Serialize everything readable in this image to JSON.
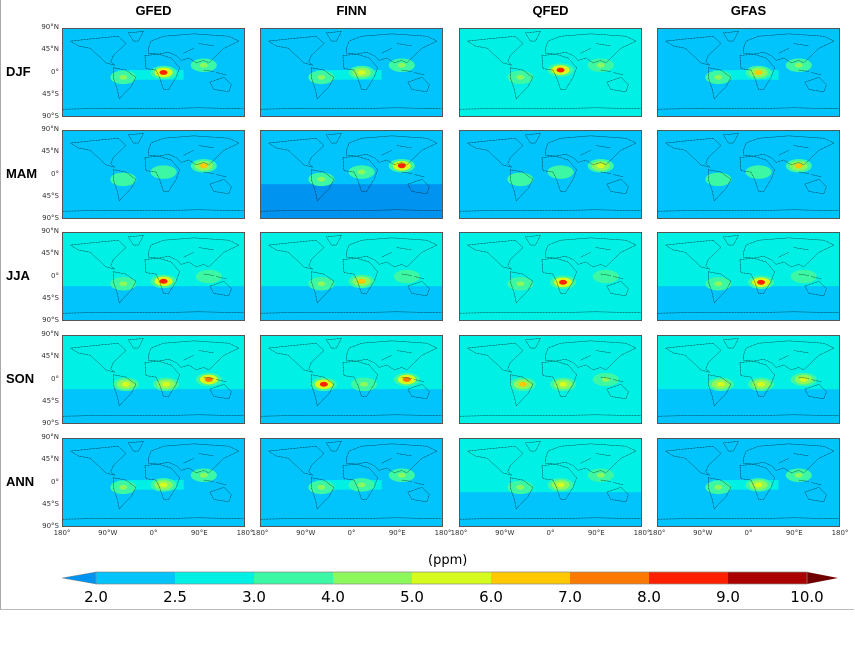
{
  "columns": [
    "GFED",
    "FINN",
    "QFED",
    "GFAS"
  ],
  "rows": [
    "DJF",
    "MAM",
    "JJA",
    "SON",
    "ANN"
  ],
  "lat_ticks": [
    "90°N",
    "45°N",
    "0°",
    "45°S",
    "90°S"
  ],
  "lon_ticks": [
    "180°",
    "90°W",
    "0°",
    "90°E",
    "180°"
  ],
  "colorbar": {
    "unit": "(ppm)",
    "levels": [
      "2.0",
      "2.5",
      "3.0",
      "4.0",
      "5.0",
      "6.0",
      "7.0",
      "8.0",
      "9.0",
      "10.0"
    ],
    "colors": [
      "#0094f0",
      "#00c4fb",
      "#00f0e6",
      "#3cf7a4",
      "#8cf85c",
      "#d6fb1e",
      "#ffc800",
      "#ff7800",
      "#ff2000",
      "#aa0000",
      "#700000"
    ],
    "extend": "both"
  },
  "panels": [
    [
      {
        "north": 2.2,
        "south": 2.2,
        "band": 2.7,
        "spots": [
          [
            20,
            0,
            8.5
          ],
          [
            -60,
            -10,
            4.5
          ],
          [
            100,
            15,
            4.5
          ]
        ]
      },
      {
        "north": 2.2,
        "south": 2.2,
        "band": 2.6,
        "spots": [
          [
            20,
            0,
            5.5
          ],
          [
            -60,
            -10,
            4
          ],
          [
            100,
            15,
            4.5
          ]
        ]
      },
      {
        "north": 2.7,
        "south": 2.7,
        "band": 2.8,
        "spots": [
          [
            20,
            5,
            8.5
          ],
          [
            -60,
            -10,
            4.5
          ],
          [
            100,
            15,
            4.5
          ]
        ]
      },
      {
        "north": 2.2,
        "south": 2.2,
        "band": 2.7,
        "spots": [
          [
            20,
            0,
            6.5
          ],
          [
            -60,
            -10,
            4
          ],
          [
            100,
            15,
            4.5
          ]
        ]
      }
    ],
    [
      {
        "north": 2.2,
        "south": 2.2,
        "band": 2.3,
        "spots": [
          [
            100,
            18,
            6
          ],
          [
            -60,
            -10,
            3.5
          ],
          [
            20,
            5,
            3.5
          ]
        ]
      },
      {
        "north": 2.2,
        "south": 1.9,
        "band": 2.3,
        "spots": [
          [
            100,
            18,
            8.5
          ],
          [
            -60,
            -10,
            4
          ],
          [
            20,
            5,
            4
          ]
        ]
      },
      {
        "north": 2.3,
        "south": 2.2,
        "band": 2.4,
        "spots": [
          [
            100,
            18,
            5
          ],
          [
            -60,
            -10,
            3.5
          ],
          [
            20,
            5,
            3.5
          ]
        ]
      },
      {
        "north": 2.2,
        "south": 2.2,
        "band": 2.3,
        "spots": [
          [
            100,
            18,
            6
          ],
          [
            -60,
            -10,
            3.5
          ],
          [
            20,
            5,
            3.5
          ]
        ]
      }
    ],
    [
      {
        "north": 2.7,
        "south": 2.2,
        "band": 2.7,
        "spots": [
          [
            20,
            -10,
            8.5
          ],
          [
            -60,
            -15,
            4.5
          ],
          [
            110,
            0,
            3.5
          ]
        ]
      },
      {
        "north": 2.7,
        "south": 2.2,
        "band": 2.7,
        "spots": [
          [
            20,
            -10,
            6
          ],
          [
            -60,
            -15,
            4
          ],
          [
            110,
            0,
            3.5
          ]
        ]
      },
      {
        "north": 2.7,
        "south": 2.7,
        "band": 2.8,
        "spots": [
          [
            25,
            -12,
            8.5
          ],
          [
            -60,
            -15,
            4.5
          ],
          [
            110,
            0,
            3.5
          ]
        ]
      },
      {
        "north": 2.7,
        "south": 2.4,
        "band": 2.7,
        "spots": [
          [
            25,
            -12,
            8.5
          ],
          [
            -60,
            -15,
            4.5
          ],
          [
            110,
            0,
            3.5
          ]
        ]
      }
    ],
    [
      {
        "north": 2.7,
        "south": 2.3,
        "band": 2.8,
        "spots": [
          [
            -55,
            -10,
            5.5
          ],
          [
            25,
            -10,
            5
          ],
          [
            110,
            0,
            7
          ]
        ]
      },
      {
        "north": 2.7,
        "south": 2.2,
        "band": 2.8,
        "spots": [
          [
            -55,
            -10,
            8.5
          ],
          [
            25,
            -10,
            4.5
          ],
          [
            110,
            0,
            7
          ]
        ]
      },
      {
        "north": 2.7,
        "south": 2.7,
        "band": 2.9,
        "spots": [
          [
            -55,
            -10,
            6
          ],
          [
            25,
            -10,
            5
          ],
          [
            110,
            0,
            4.5
          ]
        ]
      },
      {
        "north": 2.7,
        "south": 2.3,
        "band": 2.8,
        "spots": [
          [
            -55,
            -10,
            5.5
          ],
          [
            25,
            -10,
            5
          ],
          [
            110,
            0,
            5
          ]
        ]
      }
    ],
    [
      {
        "north": 2.2,
        "south": 2.2,
        "band": 2.6,
        "spots": [
          [
            20,
            -5,
            5.5
          ],
          [
            -60,
            -10,
            4.5
          ],
          [
            100,
            15,
            4.5
          ]
        ]
      },
      {
        "north": 2.2,
        "south": 2.2,
        "band": 2.6,
        "spots": [
          [
            20,
            -5,
            4.5
          ],
          [
            -60,
            -10,
            4.5
          ],
          [
            100,
            15,
            4.5
          ]
        ]
      },
      {
        "north": 2.6,
        "south": 2.3,
        "band": 2.7,
        "spots": [
          [
            20,
            -5,
            5
          ],
          [
            -60,
            -10,
            4
          ],
          [
            100,
            15,
            4
          ]
        ]
      },
      {
        "north": 2.2,
        "south": 2.2,
        "band": 2.6,
        "spots": [
          [
            20,
            -5,
            5.5
          ],
          [
            -60,
            -10,
            4.5
          ],
          [
            100,
            15,
            4.5
          ]
        ]
      }
    ]
  ]
}
